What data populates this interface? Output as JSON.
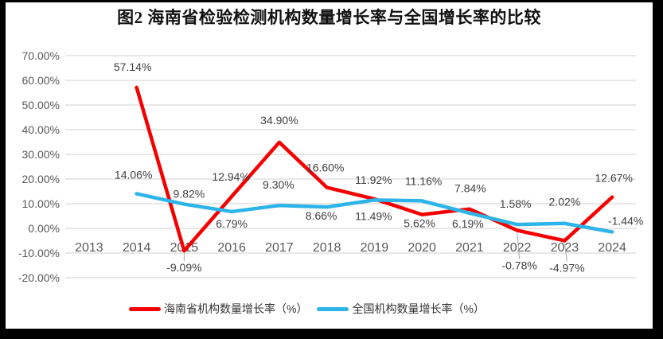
{
  "chart_data": {
    "type": "line",
    "title": "图2 海南省检验检测机构数量增长率与全国增长率的比较",
    "categories": [
      "2013",
      "2014",
      "2015",
      "2016",
      "2017",
      "2018",
      "2019",
      "2020",
      "2021",
      "2022",
      "2023",
      "2024"
    ],
    "first_data_category": "2014",
    "y_ticks": [
      "70.00%",
      "60.00%",
      "50.00%",
      "40.00%",
      "30.00%",
      "20.00%",
      "10.00%",
      "0.00%",
      "-10.00%",
      "-20.00%"
    ],
    "y_tick_values": [
      70,
      60,
      50,
      40,
      30,
      20,
      10,
      0,
      -10,
      -20
    ],
    "ylim": [
      -20,
      70
    ],
    "grid": true,
    "legend_position": "bottom",
    "series": [
      {
        "name": "海南省机构数量增长率（%）",
        "color": "#F40000",
        "values": [
          57.14,
          -9.09,
          12.94,
          34.9,
          16.6,
          11.92,
          5.62,
          7.84,
          -0.78,
          -4.97,
          12.67
        ],
        "labels": [
          "57.14%",
          "-9.09%",
          "12.94%",
          "34.90%",
          "16.60%",
          "11.92%",
          "5.62%",
          "7.84%",
          "-0.78%",
          "-4.97%",
          "12.67%"
        ]
      },
      {
        "name": "全国机构数量增长率（%）",
        "color": "#2DB4E8",
        "values": [
          14.06,
          9.82,
          6.79,
          9.3,
          8.66,
          11.49,
          11.16,
          6.19,
          1.58,
          2.02,
          -1.44
        ],
        "labels": [
          "14.06%",
          "9.82%",
          "6.79%",
          "9.30%",
          "8.66%",
          "11.49%",
          "11.16%",
          "6.19%",
          "1.58%",
          "2.02%",
          "-1.44%"
        ]
      }
    ]
  },
  "colors": {
    "page": "#FFFFFF",
    "frame": "#000000",
    "grid": "#D9D9D9",
    "tick_text": "#595959",
    "label_text": "#404040",
    "leader": "#A6A6A6"
  }
}
